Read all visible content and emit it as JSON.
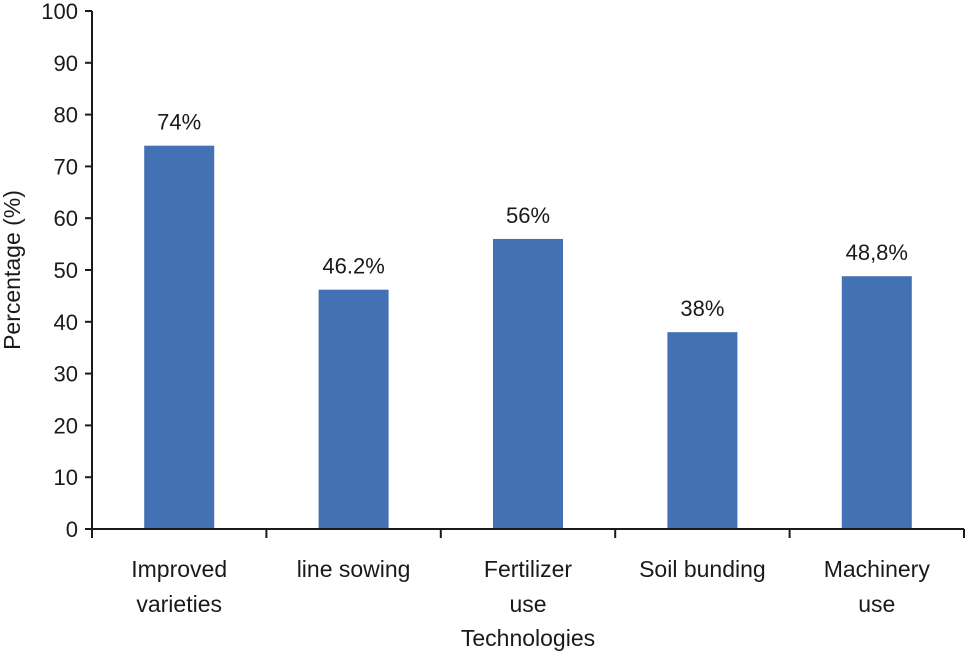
{
  "chart_data": {
    "type": "bar",
    "title": "",
    "xlabel": "Technologies",
    "ylabel": "Percentage (%)",
    "ylim": [
      0,
      100
    ],
    "yticks": [
      "0",
      "10",
      "20",
      "30",
      "40",
      "50",
      "60",
      "70",
      "80",
      "90",
      "100"
    ],
    "grid": false,
    "categories": [
      [
        "Improved",
        "varieties"
      ],
      [
        "line sowing"
      ],
      [
        "Fertilizer",
        "use"
      ],
      [
        "Soil bunding"
      ],
      [
        "Machinery",
        "use"
      ]
    ],
    "values": [
      74,
      46.2,
      56,
      38,
      48.8
    ],
    "data_labels": [
      "74%",
      "46.2%",
      "56%",
      "38%",
      "48,8%"
    ],
    "bar_color": "#4470b4"
  }
}
